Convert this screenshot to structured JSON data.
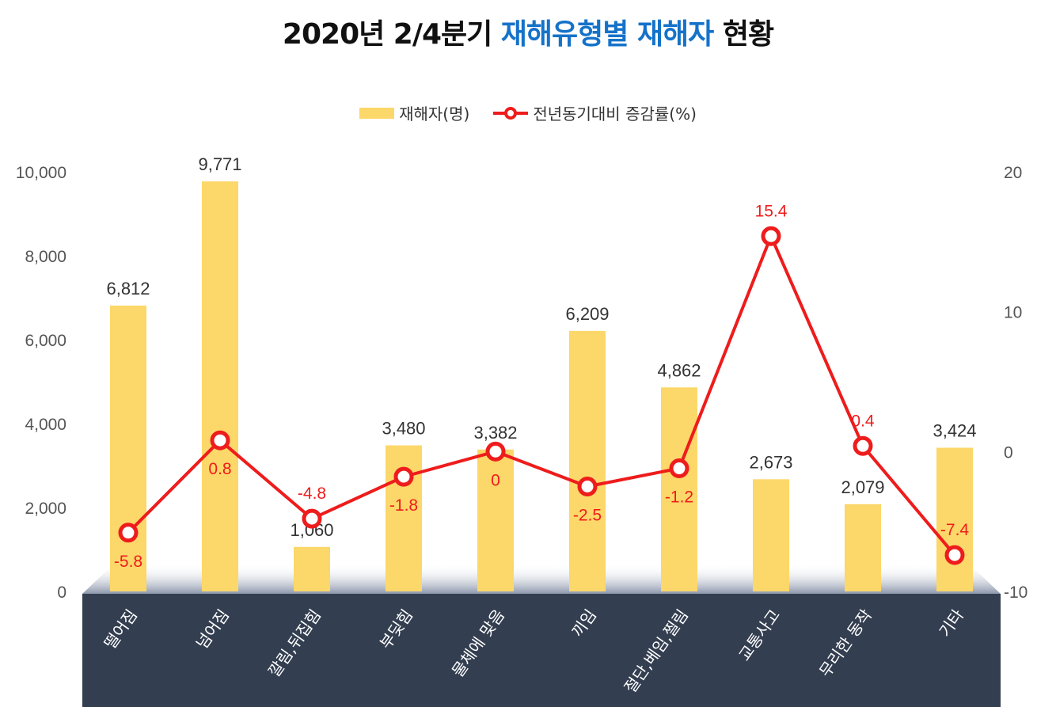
{
  "title": {
    "part1": "2020년 2/4분기 ",
    "highlight": "재해유형별 재해자",
    "part2": " 현황"
  },
  "legend": {
    "bar_label": "재해자(명)",
    "line_label": "전년동기대비 증감률(%)"
  },
  "colors": {
    "bar": "#fcd769",
    "line": "#ee1c1c",
    "title_highlight": "#1572c9",
    "axis_band": "#333e50",
    "bar_label": "#333333"
  },
  "chart_data": {
    "type": "bar",
    "categories": [
      "떨어짐",
      "넘어짐",
      "깔림,뒤집힘",
      "부딪힘",
      "물체에 맞음",
      "끼임",
      "절단,베임,찔림",
      "교통사고",
      "무리한 동작",
      "기타"
    ],
    "series": [
      {
        "name": "재해자(명)",
        "type": "bar",
        "axis": "left",
        "values": [
          6812,
          9771,
          1060,
          3480,
          3382,
          6209,
          4862,
          2673,
          2079,
          3424
        ],
        "labels": [
          "6,812",
          "9,771",
          "1,060",
          "3,480",
          "3,382",
          "6,209",
          "4,862",
          "2,673",
          "2,079",
          "3,424"
        ]
      },
      {
        "name": "전년동기대비 증감률(%)",
        "type": "line",
        "axis": "right",
        "values": [
          -5.8,
          0.8,
          -4.8,
          -1.8,
          0,
          -2.5,
          -1.2,
          15.4,
          0.4,
          -7.4
        ],
        "labels": [
          "-5.8",
          "0.8",
          "-4.8",
          "-1.8",
          "0",
          "-2.5",
          "-1.2",
          "15.4",
          "0.4",
          "-7.4"
        ]
      }
    ],
    "y_left": {
      "range": [
        0,
        10000
      ],
      "ticks": [
        "0",
        "2,000",
        "4,000",
        "6,000",
        "8,000",
        "10,000"
      ]
    },
    "y_right": {
      "range": [
        -10,
        20
      ],
      "ticks": [
        "-10",
        "0",
        "10",
        "20"
      ]
    },
    "grid": false,
    "legend_position": "top"
  }
}
